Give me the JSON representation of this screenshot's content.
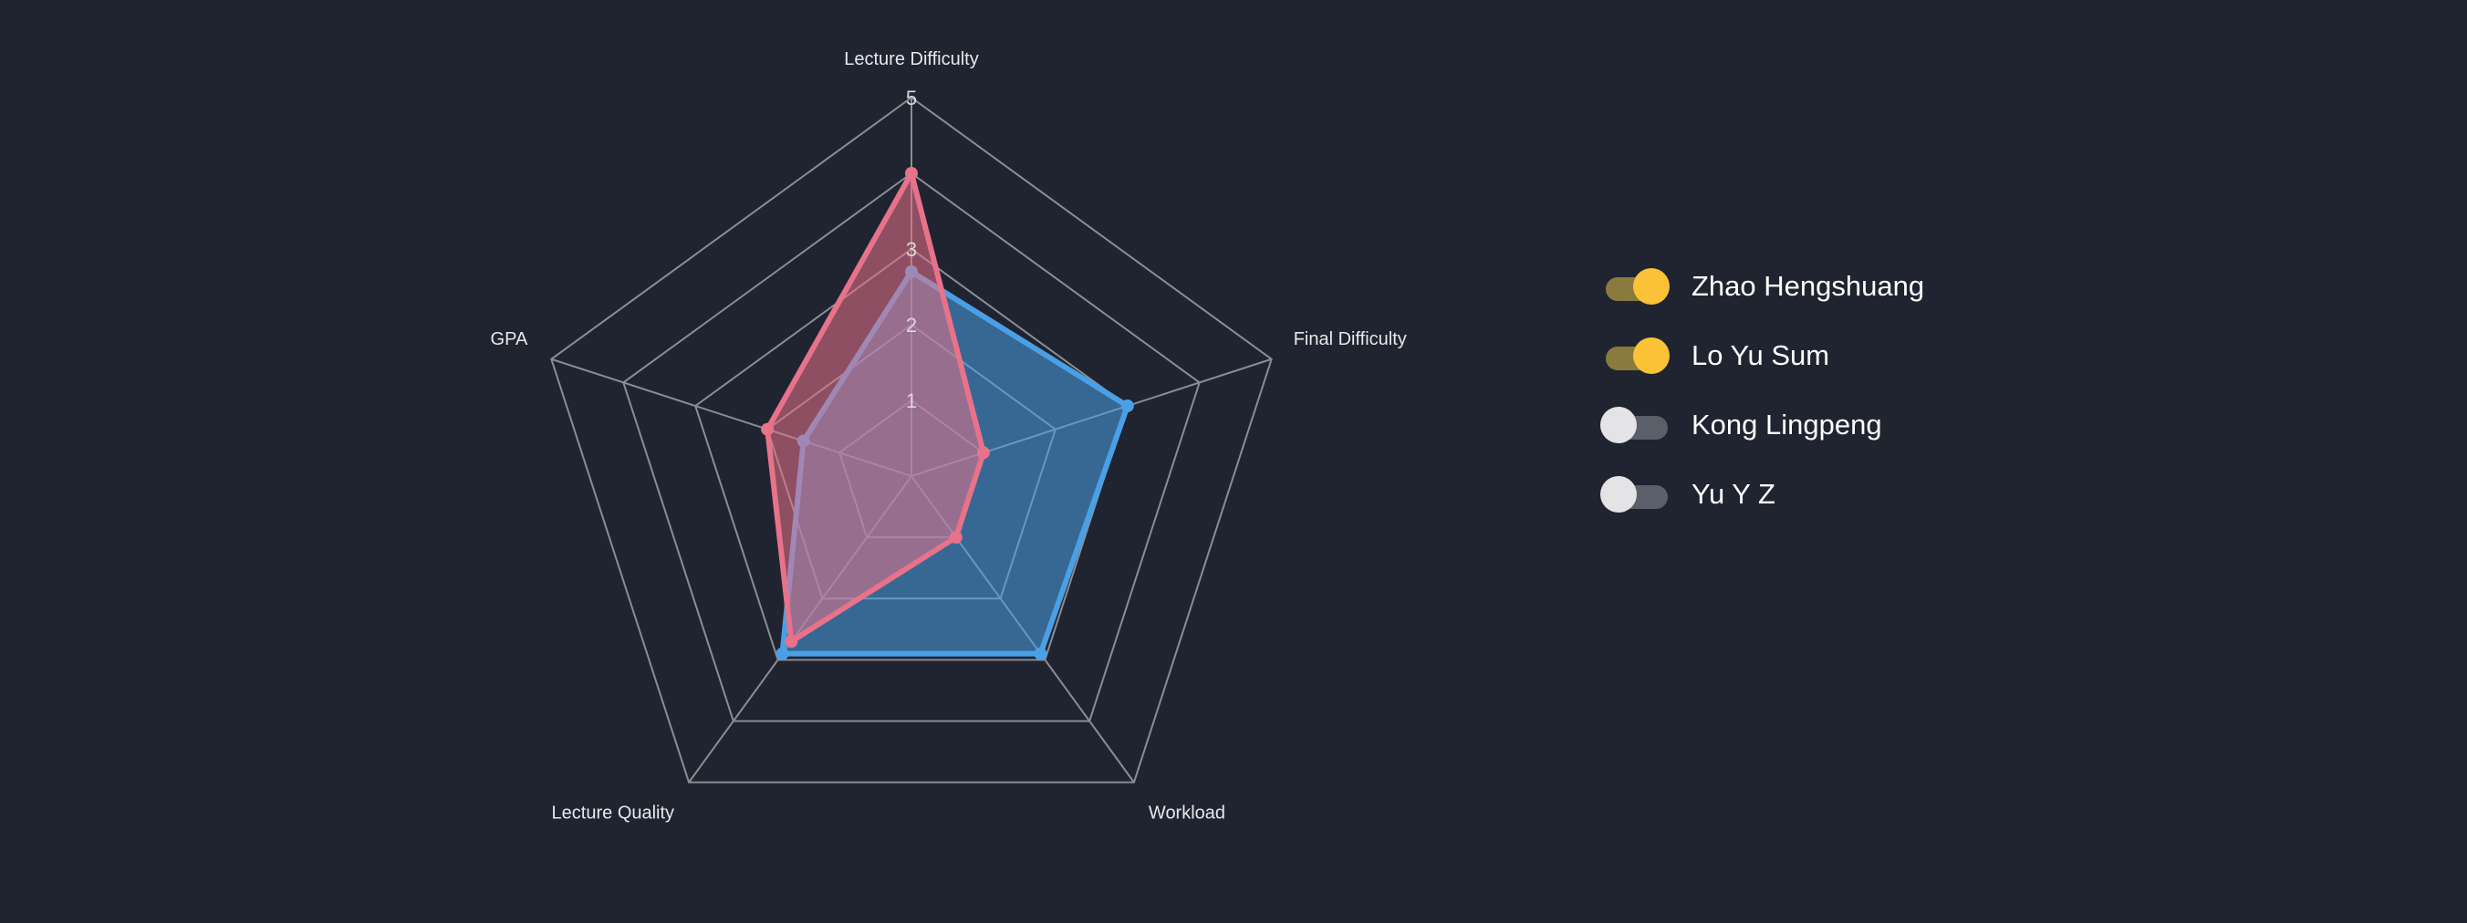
{
  "chart_data": {
    "type": "radar",
    "axes": [
      "Lecture Difficulty",
      "Final Difficulty",
      "Workload",
      "Lecture Quality",
      "GPA"
    ],
    "r_max": 5,
    "tick_labels": [
      "1",
      "2",
      "3",
      "5"
    ],
    "grid": true,
    "series": [
      {
        "name": "Zhao Hengshuang",
        "values": [
          4.0,
          1.0,
          1.0,
          2.7,
          2.0
        ],
        "color": "#e8728a",
        "enabled": true
      },
      {
        "name": "Lo Yu Sum",
        "values": [
          2.7,
          3.0,
          2.9,
          2.9,
          1.5
        ],
        "color": "#4aa0e6",
        "enabled": true
      },
      {
        "name": "Kong Lingpeng",
        "enabled": false
      },
      {
        "name": "Yu Y Z",
        "enabled": false
      }
    ],
    "legend_position": "right"
  },
  "colors": {
    "background": "#1f2430",
    "grid": "#8a8d94",
    "toggle_on": "#fbc238",
    "toggle_off": "#e4e4e6"
  }
}
